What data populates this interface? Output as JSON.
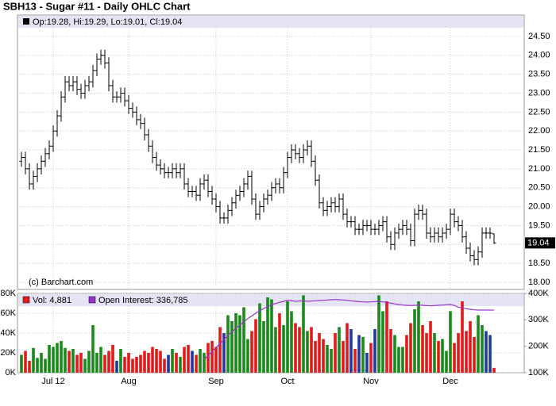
{
  "chart_data": [
    {
      "type": "ohlc",
      "title": "SBH13 - Sugar #11 - Daily OHLC Chart",
      "legend_text": "Op:19.28, Hi:19.29, Lo:19.01, Cl:19.04",
      "watermark": "(c) Barchart.com",
      "color": "#000000",
      "grid": true,
      "categories": [
        null,
        null,
        null,
        null,
        null,
        null,
        null,
        null,
        "Jul 12",
        null,
        null,
        null,
        null,
        null,
        null,
        null,
        null,
        null,
        null,
        null,
        null,
        null,
        null,
        null,
        null,
        null,
        null,
        "Aug",
        null,
        null,
        null,
        null,
        null,
        null,
        null,
        null,
        null,
        null,
        null,
        null,
        null,
        null,
        null,
        null,
        null,
        null,
        null,
        null,
        null,
        "Sep",
        null,
        null,
        null,
        null,
        null,
        null,
        null,
        null,
        null,
        null,
        null,
        null,
        null,
        null,
        null,
        null,
        null,
        "Oct",
        null,
        null,
        null,
        null,
        null,
        null,
        null,
        null,
        null,
        null,
        null,
        null,
        null,
        null,
        null,
        null,
        null,
        null,
        null,
        null,
        "Nov",
        null,
        null,
        null,
        null,
        null,
        null,
        null,
        null,
        null,
        null,
        null,
        null,
        null,
        null,
        null,
        null,
        null,
        null,
        null,
        "Dec",
        null,
        null,
        null,
        null,
        null,
        null,
        null,
        null,
        null,
        null,
        null
      ],
      "ohlc": [
        [
          21.2,
          21.45,
          21.05,
          21.3
        ],
        [
          21.3,
          21.45,
          20.85,
          21.0
        ],
        [
          21.0,
          21.15,
          20.45,
          20.6
        ],
        [
          20.6,
          20.95,
          20.45,
          20.8
        ],
        [
          20.8,
          21.15,
          20.65,
          21.0
        ],
        [
          21.0,
          21.35,
          20.85,
          21.2
        ],
        [
          21.2,
          21.55,
          21.05,
          21.4
        ],
        [
          21.4,
          21.75,
          21.25,
          21.6
        ],
        [
          21.6,
          22.15,
          21.45,
          22.0
        ],
        [
          22.0,
          22.55,
          21.85,
          22.4
        ],
        [
          22.4,
          23.05,
          22.25,
          22.9
        ],
        [
          22.9,
          23.45,
          22.75,
          23.3
        ],
        [
          23.3,
          23.45,
          23.05,
          23.2
        ],
        [
          23.2,
          23.45,
          23.05,
          23.3
        ],
        [
          23.3,
          23.45,
          22.95,
          23.1
        ],
        [
          23.1,
          23.25,
          22.85,
          23.0
        ],
        [
          23.0,
          23.35,
          22.85,
          23.2
        ],
        [
          23.2,
          23.45,
          23.05,
          23.3
        ],
        [
          23.3,
          23.75,
          23.15,
          23.6
        ],
        [
          23.6,
          24.05,
          23.45,
          23.9
        ],
        [
          23.9,
          24.15,
          23.75,
          24.0
        ],
        [
          24.0,
          24.15,
          23.65,
          23.8
        ],
        [
          23.8,
          23.95,
          23.05,
          23.2
        ],
        [
          23.2,
          23.35,
          22.75,
          22.9
        ],
        [
          22.9,
          23.05,
          22.75,
          22.9
        ],
        [
          22.9,
          23.15,
          22.75,
          23.0
        ],
        [
          23.0,
          23.15,
          22.65,
          22.8
        ],
        [
          22.8,
          22.95,
          22.45,
          22.6
        ],
        [
          22.6,
          22.75,
          22.35,
          22.5
        ],
        [
          22.5,
          22.65,
          22.15,
          22.3
        ],
        [
          22.3,
          22.45,
          22.05,
          22.2
        ],
        [
          22.2,
          22.35,
          21.75,
          21.9
        ],
        [
          21.9,
          22.05,
          21.45,
          21.6
        ],
        [
          21.6,
          21.75,
          21.15,
          21.3
        ],
        [
          21.3,
          21.45,
          20.95,
          21.1
        ],
        [
          21.1,
          21.25,
          20.85,
          21.0
        ],
        [
          21.0,
          21.15,
          20.75,
          20.9
        ],
        [
          20.9,
          21.05,
          20.75,
          20.9
        ],
        [
          20.9,
          21.15,
          20.75,
          21.0
        ],
        [
          21.0,
          21.15,
          20.75,
          20.9
        ],
        [
          20.9,
          21.15,
          20.75,
          21.0
        ],
        [
          21.0,
          21.15,
          20.45,
          20.6
        ],
        [
          20.6,
          20.75,
          20.25,
          20.4
        ],
        [
          20.4,
          20.55,
          20.25,
          20.4
        ],
        [
          20.4,
          20.55,
          20.15,
          20.3
        ],
        [
          20.3,
          20.75,
          20.15,
          20.6
        ],
        [
          20.6,
          20.85,
          20.45,
          20.7
        ],
        [
          20.7,
          20.85,
          20.25,
          20.4
        ],
        [
          20.4,
          20.55,
          20.05,
          20.2
        ],
        [
          20.2,
          20.35,
          19.85,
          20.0
        ],
        [
          20.0,
          20.15,
          19.55,
          19.7
        ],
        [
          19.7,
          19.85,
          19.55,
          19.7
        ],
        [
          19.7,
          20.05,
          19.55,
          19.9
        ],
        [
          19.9,
          20.25,
          19.75,
          20.1
        ],
        [
          20.1,
          20.45,
          19.95,
          20.3
        ],
        [
          20.3,
          20.55,
          20.15,
          20.4
        ],
        [
          20.4,
          20.75,
          20.25,
          20.6
        ],
        [
          20.6,
          20.95,
          20.45,
          20.8
        ],
        [
          20.8,
          20.95,
          20.05,
          20.2
        ],
        [
          20.2,
          20.35,
          19.65,
          19.8
        ],
        [
          19.8,
          20.15,
          19.65,
          20.0
        ],
        [
          20.0,
          20.35,
          19.85,
          20.2
        ],
        [
          20.2,
          20.45,
          20.05,
          20.3
        ],
        [
          20.3,
          20.65,
          20.15,
          20.5
        ],
        [
          20.5,
          20.75,
          20.35,
          20.6
        ],
        [
          20.6,
          20.75,
          20.35,
          20.5
        ],
        [
          20.5,
          21.05,
          20.35,
          20.9
        ],
        [
          20.9,
          21.45,
          20.75,
          21.3
        ],
        [
          21.3,
          21.65,
          21.15,
          21.5
        ],
        [
          21.5,
          21.65,
          21.25,
          21.4
        ],
        [
          21.4,
          21.55,
          21.15,
          21.3
        ],
        [
          21.3,
          21.65,
          21.15,
          21.5
        ],
        [
          21.5,
          21.75,
          21.35,
          21.6
        ],
        [
          21.6,
          21.75,
          21.05,
          21.2
        ],
        [
          21.2,
          21.35,
          20.55,
          20.7
        ],
        [
          20.7,
          20.85,
          19.95,
          20.1
        ],
        [
          20.1,
          20.25,
          19.75,
          19.9
        ],
        [
          19.9,
          20.15,
          19.75,
          20.0
        ],
        [
          20.0,
          20.25,
          19.85,
          20.1
        ],
        [
          20.1,
          20.25,
          19.85,
          20.0
        ],
        [
          20.0,
          20.35,
          19.85,
          20.2
        ],
        [
          20.2,
          20.35,
          19.65,
          19.8
        ],
        [
          19.8,
          19.95,
          19.45,
          19.6
        ],
        [
          19.6,
          19.75,
          19.45,
          19.6
        ],
        [
          19.6,
          19.75,
          19.25,
          19.4
        ],
        [
          19.4,
          19.55,
          19.25,
          19.4
        ],
        [
          19.4,
          19.65,
          19.25,
          19.5
        ],
        [
          19.5,
          19.65,
          19.35,
          19.5
        ],
        [
          19.5,
          19.65,
          19.25,
          19.4
        ],
        [
          19.4,
          19.55,
          19.25,
          19.4
        ],
        [
          19.4,
          19.65,
          19.25,
          19.5
        ],
        [
          19.5,
          19.75,
          19.35,
          19.6
        ],
        [
          19.6,
          19.75,
          19.05,
          19.2
        ],
        [
          19.2,
          19.35,
          18.85,
          19.0
        ],
        [
          19.0,
          19.45,
          18.85,
          19.3
        ],
        [
          19.3,
          19.55,
          19.15,
          19.4
        ],
        [
          19.4,
          19.65,
          19.25,
          19.5
        ],
        [
          19.5,
          19.65,
          19.25,
          19.4
        ],
        [
          19.4,
          19.55,
          18.95,
          19.1
        ],
        [
          19.1,
          19.95,
          18.95,
          19.8
        ],
        [
          19.8,
          20.05,
          19.65,
          19.9
        ],
        [
          19.9,
          20.05,
          19.65,
          19.8
        ],
        [
          19.8,
          19.95,
          19.15,
          19.3
        ],
        [
          19.3,
          19.45,
          19.05,
          19.2
        ],
        [
          19.2,
          19.45,
          19.05,
          19.3
        ],
        [
          19.3,
          19.45,
          19.05,
          19.2
        ],
        [
          19.2,
          19.45,
          19.05,
          19.3
        ],
        [
          19.3,
          19.55,
          19.15,
          19.4
        ],
        [
          19.4,
          19.95,
          19.25,
          19.8
        ],
        [
          19.8,
          19.95,
          19.45,
          19.6
        ],
        [
          19.6,
          19.75,
          19.35,
          19.5
        ],
        [
          19.5,
          19.65,
          19.05,
          19.2
        ],
        [
          19.2,
          19.35,
          18.75,
          18.9
        ],
        [
          18.9,
          19.05,
          18.55,
          18.7
        ],
        [
          18.7,
          18.85,
          18.45,
          18.6
        ],
        [
          18.6,
          18.95,
          18.45,
          18.8
        ],
        [
          18.8,
          19.45,
          18.65,
          19.3
        ],
        [
          19.3,
          19.45,
          19.15,
          19.3
        ],
        [
          19.3,
          19.45,
          19.15,
          19.3
        ],
        [
          19.28,
          19.29,
          19.01,
          19.04
        ]
      ],
      "ylim": [
        17.81,
        24.73
      ],
      "yticks": [
        {
          "value": 18,
          "label": "18.00"
        },
        {
          "value": 18.5,
          "label": "18.50"
        },
        {
          "value": 19,
          "label": "19.00"
        },
        {
          "value": 19.5,
          "label": "19.50"
        },
        {
          "value": 20,
          "label": "20.00"
        },
        {
          "value": 20.5,
          "label": "20.50"
        },
        {
          "value": 21,
          "label": "21.00"
        },
        {
          "value": 21.5,
          "label": "21.50"
        },
        {
          "value": 22,
          "label": "22.00"
        },
        {
          "value": 22.5,
          "label": "22.50"
        },
        {
          "value": 23,
          "label": "23.00"
        },
        {
          "value": 23.5,
          "label": "23.50"
        },
        {
          "value": 24,
          "label": "24.00"
        },
        {
          "value": 24.5,
          "label": "24.50"
        }
      ]
    },
    {
      "type": "bar",
      "grid": true,
      "series": [
        {
          "name": "Vol: 4,881",
          "color": "#e31a1c",
          "colors": {
            "up": "#1a8a1a",
            "down": "#e31a1c",
            "flat": "#1f3a9e"
          },
          "values": [
            18000,
            22000,
            12000,
            25000,
            15000,
            20000,
            14000,
            28000,
            26000,
            30000,
            32000,
            25000,
            22000,
            24000,
            18000,
            20000,
            14000,
            22000,
            48000,
            20000,
            26000,
            18000,
            22000,
            28000,
            12000,
            24000,
            16000,
            20000,
            14000,
            16000,
            18000,
            22000,
            20000,
            26000,
            24000,
            22000,
            14000,
            18000,
            24000,
            20000,
            16000,
            26000,
            28000,
            22000,
            18000,
            24000,
            20000,
            30000,
            32000,
            26000,
            46000,
            40000,
            58000,
            52000,
            60000,
            58000,
            66000,
            34000,
            42000,
            54000,
            70000,
            52000,
            76000,
            74000,
            46000,
            60000,
            48000,
            72000,
            62000,
            50000,
            46000,
            78000,
            42000,
            46000,
            32000,
            40000,
            34000,
            28000,
            24000,
            40000,
            46000,
            32000,
            50000,
            44000,
            24000,
            38000,
            36000,
            20000,
            30000,
            44000,
            78000,
            62000,
            72000,
            44000,
            38000,
            26000,
            26000,
            38000,
            50000,
            64000,
            72000,
            48000,
            40000,
            52000,
            40000,
            32000,
            34000,
            22000,
            62000,
            30000,
            40000,
            72000,
            42000,
            52000,
            36000,
            58000,
            48000,
            42000,
            38000,
            4881
          ]
        },
        {
          "name": "Open Interest: 336,785",
          "color": "#9933cc",
          "axis": "y2",
          "values": [
            null,
            null,
            null,
            null,
            null,
            null,
            null,
            null,
            null,
            null,
            null,
            null,
            null,
            null,
            null,
            null,
            null,
            null,
            null,
            null,
            null,
            null,
            null,
            null,
            null,
            null,
            null,
            null,
            null,
            null,
            null,
            null,
            null,
            null,
            null,
            null,
            null,
            null,
            null,
            null,
            null,
            null,
            null,
            null,
            null,
            null,
            150000,
            165000,
            180000,
            195000,
            210000,
            225000,
            240000,
            255000,
            268000,
            280000,
            292000,
            305000,
            315000,
            325000,
            335000,
            343000,
            350000,
            357000,
            362000,
            366000,
            370000,
            374000,
            372000,
            370000,
            371000,
            372000,
            370000,
            371000,
            372000,
            373000,
            374000,
            375000,
            376000,
            377000,
            376000,
            375000,
            374000,
            372000,
            370000,
            369000,
            368000,
            367000,
            368000,
            369000,
            370000,
            368000,
            366000,
            363000,
            360000,
            358000,
            356000,
            355000,
            354000,
            355000,
            356000,
            355000,
            354000,
            353000,
            354000,
            355000,
            356000,
            357000,
            358000,
            354000,
            348000,
            345000,
            342000,
            340000,
            338000,
            337000,
            337000,
            337000,
            337000,
            336785
          ]
        }
      ],
      "ylim": [
        0,
        80000
      ],
      "yticks": [
        {
          "value": 0,
          "label": "0K"
        },
        {
          "value": 20000,
          "label": "20K"
        },
        {
          "value": 40000,
          "label": "40K"
        },
        {
          "value": 60000,
          "label": "60K"
        },
        {
          "value": 80000,
          "label": "80K"
        }
      ],
      "y2lim": [
        100000,
        400000
      ],
      "y2ticks": [
        {
          "value": 100000,
          "label": "100K"
        },
        {
          "value": 200000,
          "label": "200K"
        },
        {
          "value": 300000,
          "label": "300K"
        },
        {
          "value": 400000,
          "label": "400K"
        }
      ]
    }
  ]
}
